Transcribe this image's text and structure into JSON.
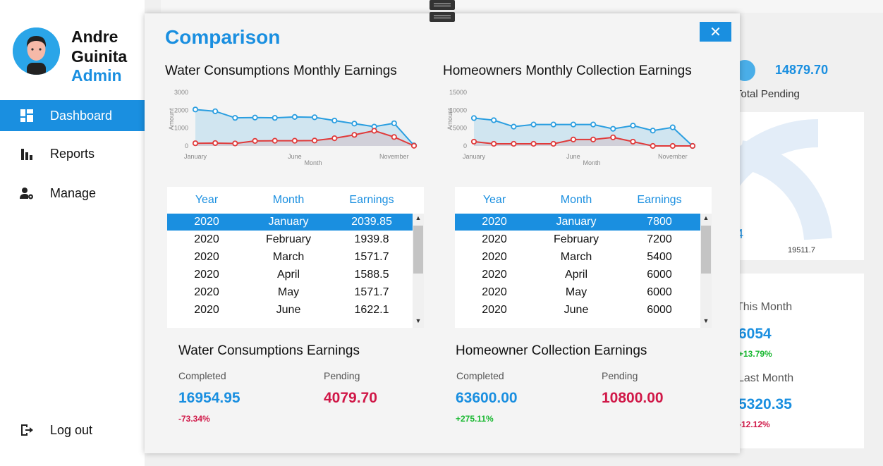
{
  "sidebar": {
    "user_first": "Andre",
    "user_last": "Guinita",
    "role": "Admin",
    "items": [
      {
        "label": "Dashboard",
        "icon": "dashboard-icon",
        "active": true
      },
      {
        "label": "Reports",
        "icon": "bar-chart-icon",
        "active": false
      },
      {
        "label": "Manage",
        "icon": "user-settings-icon",
        "active": false
      }
    ],
    "logout": "Log out"
  },
  "background": {
    "pending_value": "14879.70",
    "pending_label": "Total Pending",
    "gauge_value": "19511.7",
    "gauge_partial": "4",
    "this_month_label": "This Month",
    "this_month_value": "6054",
    "this_month_pct": "+13.79%",
    "last_month_label": "Last Month",
    "last_month_value": "5320.35",
    "last_month_pct": "-12.12%"
  },
  "modal": {
    "title": "Comparison",
    "close": "✕",
    "water": {
      "chart_title": "Water Consumptions Monthly Earnings",
      "table_headers": [
        "Year",
        "Month",
        "Earnings"
      ],
      "rows": [
        [
          "2020",
          "January",
          "2039.85"
        ],
        [
          "2020",
          "February",
          "1939.8"
        ],
        [
          "2020",
          "March",
          "1571.7"
        ],
        [
          "2020",
          "April",
          "1588.5"
        ],
        [
          "2020",
          "May",
          "1571.7"
        ],
        [
          "2020",
          "June",
          "1622.1"
        ]
      ],
      "earnings_title": "Water Consumptions Earnings",
      "completed_label": "Completed",
      "completed_value": "16954.95",
      "completed_pct": "-73.34%",
      "pending_label": "Pending",
      "pending_value": "4079.70"
    },
    "homeowners": {
      "chart_title": "Homeowners Monthly Collection Earnings",
      "table_headers": [
        "Year",
        "Month",
        "Earnings"
      ],
      "rows": [
        [
          "2020",
          "January",
          "7800"
        ],
        [
          "2020",
          "February",
          "7200"
        ],
        [
          "2020",
          "March",
          "5400"
        ],
        [
          "2020",
          "April",
          "6000"
        ],
        [
          "2020",
          "May",
          "6000"
        ],
        [
          "2020",
          "June",
          "6000"
        ]
      ],
      "earnings_title": "Homeowner Collection Earnings",
      "completed_label": "Completed",
      "completed_value": "63600.00",
      "completed_pct": "+275.11%",
      "pending_label": "Pending",
      "pending_value": "10800.00"
    }
  },
  "colors": {
    "accent": "#1a8fe0",
    "completed_line": "#2a9ee0",
    "pending_line": "#e03a3a",
    "negative": "#d01848",
    "positive": "#18b830"
  },
  "chart_data": [
    {
      "type": "area",
      "title": "",
      "xlabel": "Month",
      "ylabel": "Amount",
      "x_tick_labels": [
        "January",
        "June",
        "November"
      ],
      "yticks": [
        0,
        1000,
        2000,
        3000
      ],
      "ylim": [
        0,
        3000
      ],
      "categories": [
        "January",
        "February",
        "March",
        "April",
        "May",
        "June",
        "July",
        "August",
        "September",
        "October",
        "November",
        "December"
      ],
      "series": [
        {
          "values": [
            2040,
            1940,
            1572,
            1589,
            1572,
            1622,
            1605,
            1420,
            1250,
            1080,
            1270,
            30
          ]
        },
        {
          "values": [
            150,
            160,
            140,
            280,
            290,
            290,
            300,
            430,
            620,
            850,
            500,
            10
          ]
        }
      ]
    },
    {
      "type": "area",
      "title": "",
      "xlabel": "Month",
      "ylabel": "Amount",
      "x_tick_labels": [
        "January",
        "June",
        "November"
      ],
      "yticks": [
        0,
        5000,
        10000,
        15000
      ],
      "ylim": [
        0,
        15000
      ],
      "categories": [
        "January",
        "February",
        "March",
        "April",
        "May",
        "June",
        "July",
        "August",
        "September",
        "October",
        "November",
        "December"
      ],
      "series": [
        {
          "values": [
            7800,
            7200,
            5400,
            6000,
            6000,
            6000,
            6000,
            4800,
            5700,
            4300,
            5200,
            0
          ]
        },
        {
          "values": [
            1200,
            600,
            600,
            600,
            600,
            1800,
            1800,
            2400,
            1200,
            0,
            0,
            0
          ]
        }
      ]
    }
  ]
}
